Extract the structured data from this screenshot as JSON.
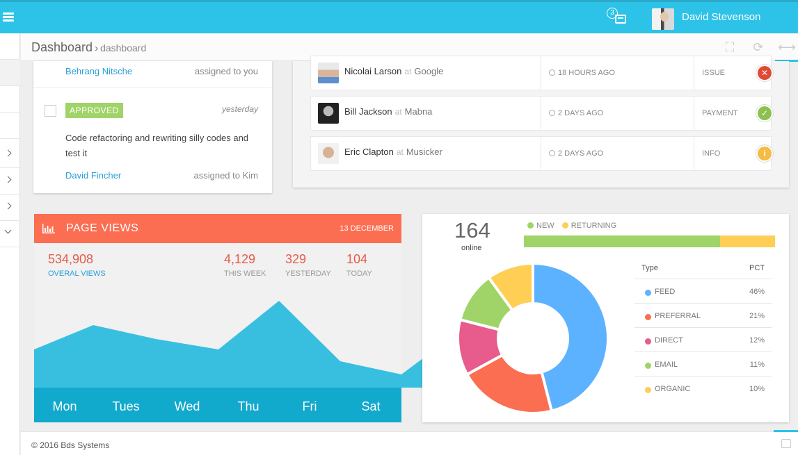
{
  "topbar": {
    "notification_count": "3",
    "user_name": "David Stevenson",
    "color": "#2dc3e8"
  },
  "breadcrumb": {
    "title": "Dashboard",
    "separator": "›",
    "current": "dashboard"
  },
  "header_tools": [
    {
      "icon": "fullscreen-icon",
      "glyph": "⛶",
      "accent": "#fb6e52"
    },
    {
      "icon": "refresh-icon",
      "glyph": "⟳",
      "accent": "#ffce55"
    },
    {
      "icon": "collapse-icon",
      "glyph": "⟷",
      "accent": "#2dc3e8"
    }
  ],
  "tasks": {
    "items": [
      {
        "person": "Behrang Nitsche",
        "assigned": "assigned to you"
      },
      {
        "label": "APPROVED",
        "time": "yesterday",
        "text": "Code refactoring and rewriting silly codes and test it",
        "person": "David Fincher",
        "assigned": "assigned to Kim"
      }
    ]
  },
  "activity": {
    "rows": [
      {
        "name": "Nicolai Larson",
        "at": "at",
        "company": "Google",
        "time": "18 HOURS AGO",
        "type": "ISSUE",
        "status_icon": "x-icon",
        "status_glyph": "✕",
        "status_color": "#e04a34"
      },
      {
        "name": "Bill Jackson",
        "at": "at",
        "company": "Mabna",
        "time": "2 DAYS AGO",
        "type": "PAYMENT",
        "status_icon": "check-icon",
        "status_glyph": "✓",
        "status_color": "#8cc152"
      },
      {
        "name": "Eric Clapton",
        "at": "at",
        "company": "Musicker",
        "time": "2 DAYS AGO",
        "type": "INFO",
        "status_icon": "info-icon",
        "status_glyph": "i",
        "status_color": "#f6bb42"
      }
    ]
  },
  "page_views": {
    "title": "PAGE VIEWS",
    "date": "13 DECEMBER",
    "color": "#fb6e52",
    "stats": [
      {
        "value": "534,908",
        "label": "OVERAL VIEWS"
      },
      {
        "value": "4,129",
        "label": "THIS WEEK"
      },
      {
        "value": "329",
        "label": "YESTERDAY"
      },
      {
        "value": "104",
        "label": "TODAY"
      }
    ],
    "days": [
      "Mon",
      "Tues",
      "Wed",
      "Thu",
      "Fri",
      "Sat"
    ]
  },
  "visitors": {
    "online_count": "164",
    "online_label": "online",
    "legend": [
      {
        "name": "NEW",
        "color": "#a0d468"
      },
      {
        "name": "RETURNING",
        "color": "#ffce55"
      }
    ],
    "new_fraction": 0.78,
    "table_headers": {
      "type": "Type",
      "pct": "PCT"
    },
    "sources": [
      {
        "name": "FEED",
        "pct": "46%",
        "value": 46,
        "color": "#5db2ff"
      },
      {
        "name": "PREFERRAL",
        "pct": "21%",
        "value": 21,
        "color": "#fb6e52"
      },
      {
        "name": "DIRECT",
        "pct": "12%",
        "value": 12,
        "color": "#e75b8d"
      },
      {
        "name": "EMAIL",
        "pct": "11%",
        "value": 11,
        "color": "#a0d468"
      },
      {
        "name": "ORGANIC",
        "pct": "10%",
        "value": 10,
        "color": "#ffce55"
      }
    ]
  },
  "footer": {
    "copyright_symbol": "©",
    "text": "2016 Bds Systems"
  }
}
